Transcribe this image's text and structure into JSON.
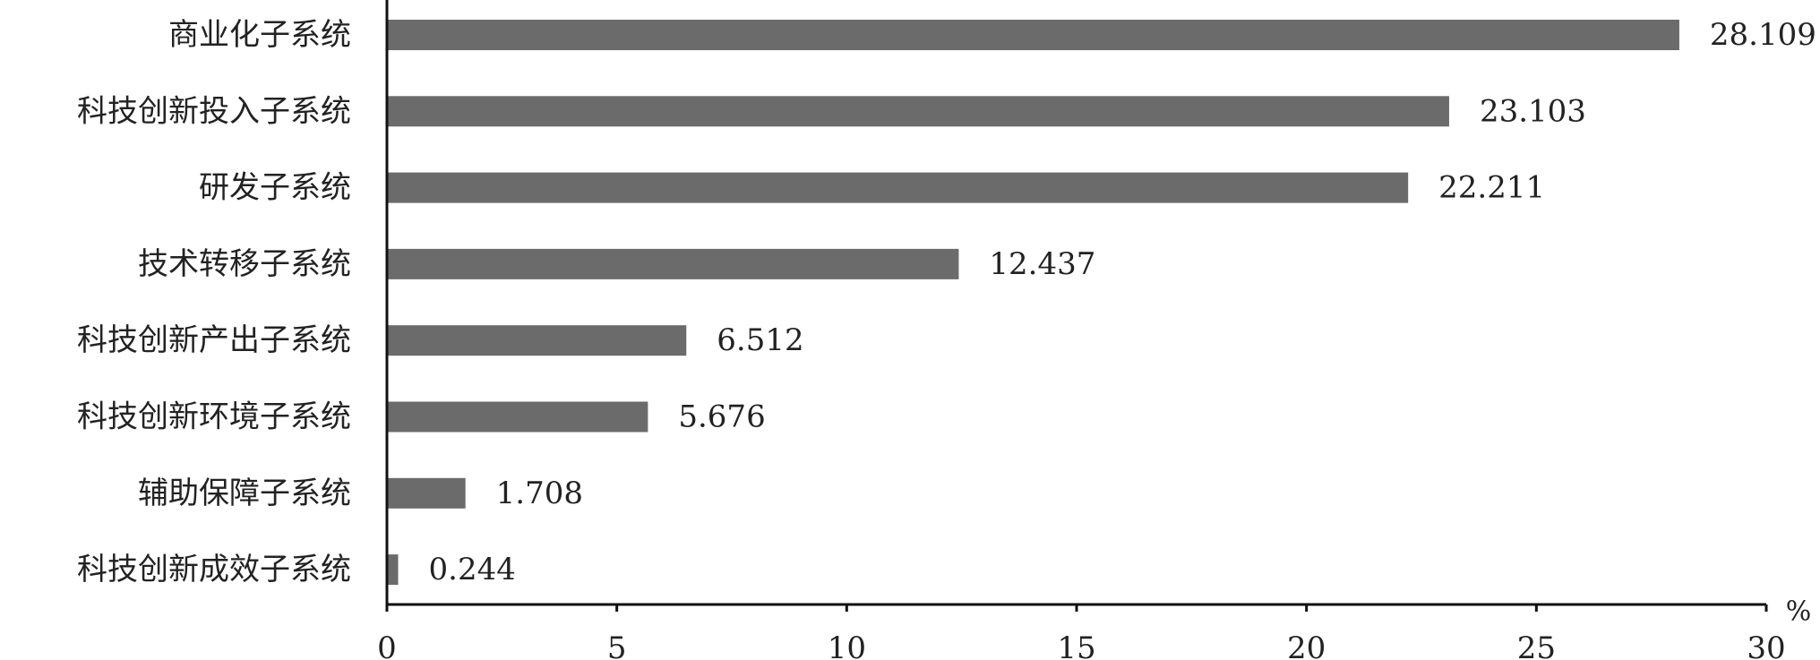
{
  "chart_data": {
    "type": "bar",
    "orientation": "horizontal",
    "categories": [
      "商业化子系统",
      "科技创新投入子系统",
      "研发子系统",
      "技术转移子系统",
      "科技创新产出子系统",
      "科技创新环境子系统",
      "辅助保障子系统",
      "科技创新成效子系统"
    ],
    "values": [
      28.109,
      23.103,
      22.211,
      12.437,
      6.512,
      5.676,
      1.708,
      0.244
    ],
    "value_labels": [
      "28.109",
      "23.103",
      "22.211",
      "12.437",
      "6.512",
      "5.676",
      "1.708",
      "0.244"
    ],
    "xlim": [
      0,
      30
    ],
    "xticks": [
      0,
      5,
      10,
      15,
      20,
      25,
      30
    ],
    "xtick_labels": [
      "0",
      "5",
      "10",
      "15",
      "20",
      "25",
      "30"
    ],
    "unit": "%",
    "grid": false,
    "bar_color": "#6b6b6b"
  }
}
